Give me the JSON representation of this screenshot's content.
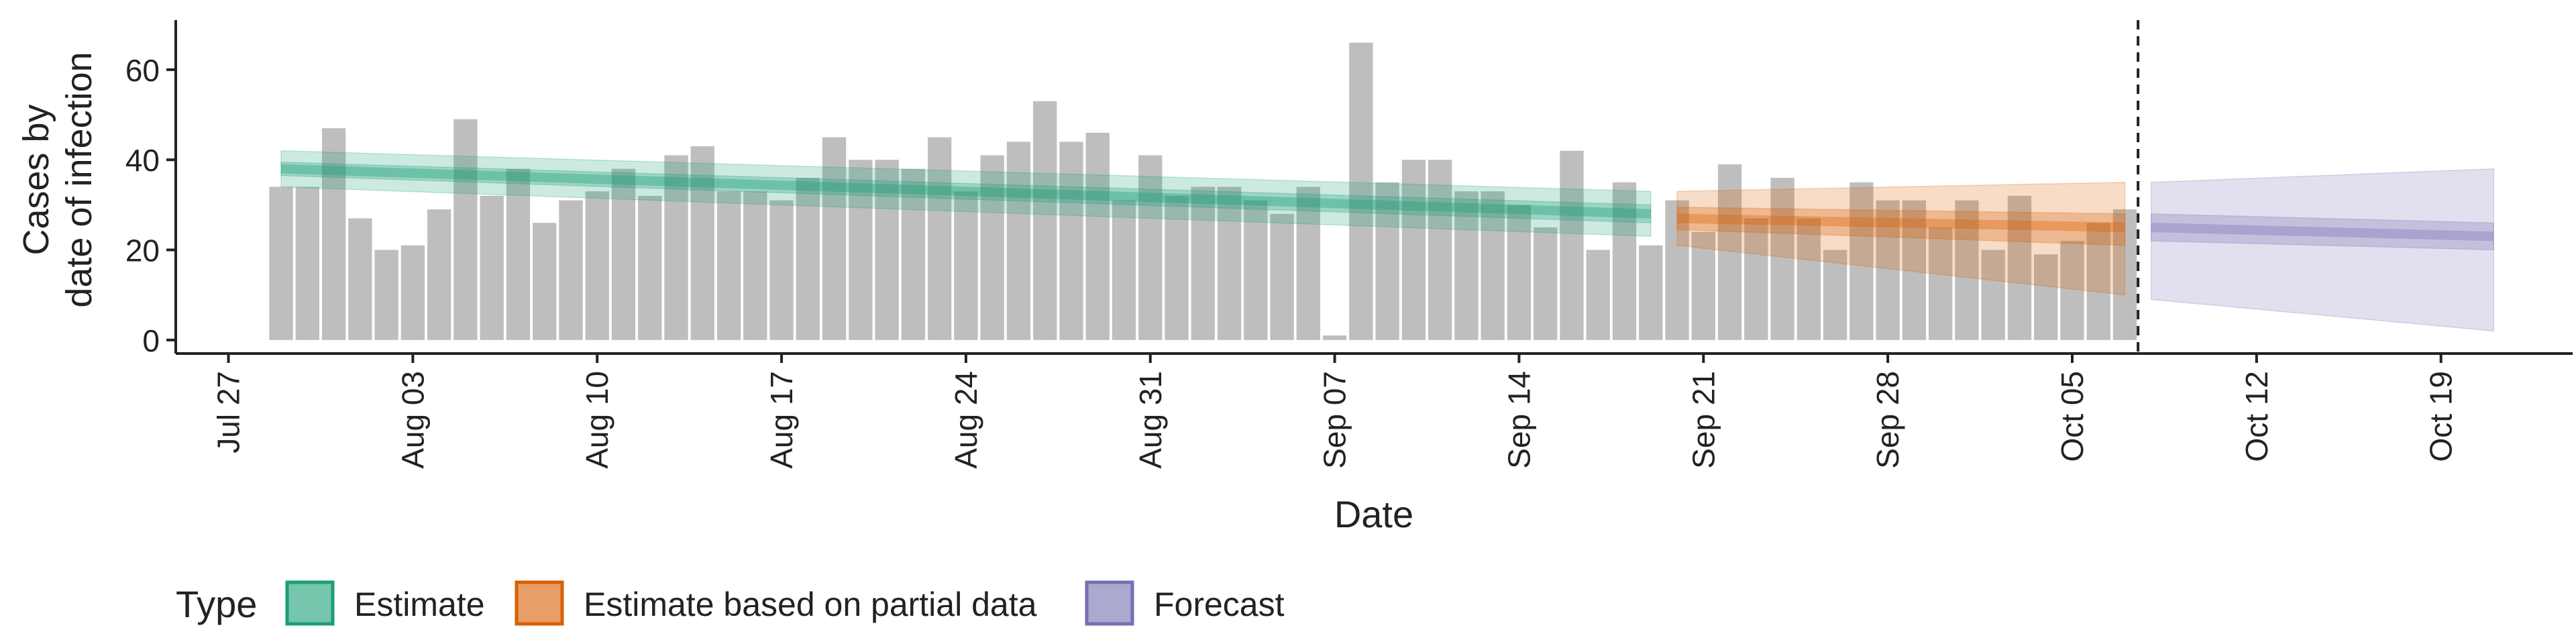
{
  "chart_data": {
    "type": "bar",
    "ylabel_lines": [
      "Cases by",
      "date of infection"
    ],
    "xlabel": "Date",
    "ylim": [
      -3,
      71
    ],
    "yticks": [
      0,
      20,
      40,
      60
    ],
    "x_start": "2020-07-25",
    "x_end": "2020-10-24",
    "xtick_dates": [
      "2020-07-27",
      "2020-08-03",
      "2020-08-10",
      "2020-08-17",
      "2020-08-24",
      "2020-08-31",
      "2020-09-07",
      "2020-09-14",
      "2020-09-21",
      "2020-09-28",
      "2020-10-05",
      "2020-10-12",
      "2020-10-19"
    ],
    "xtick_labels": [
      "Jul 27",
      "Aug 03",
      "Aug 10",
      "Aug 17",
      "Aug 24",
      "Aug 31",
      "Sep 07",
      "Sep 14",
      "Sep 21",
      "Sep 28",
      "Oct 05",
      "Oct 12",
      "Oct 19"
    ],
    "bar_start_date": "2020-07-29",
    "bar_values": [
      34,
      34,
      47,
      27,
      20,
      21,
      29,
      49,
      32,
      38,
      26,
      31,
      33,
      38,
      32,
      41,
      43,
      33,
      33,
      31,
      36,
      45,
      40,
      40,
      38,
      45,
      33,
      41,
      44,
      53,
      44,
      46,
      31,
      41,
      32,
      34,
      34,
      31,
      28,
      34,
      1,
      66,
      35,
      40,
      40,
      33,
      33,
      30,
      25,
      42,
      20,
      35,
      21,
      31,
      24,
      39,
      27,
      36,
      27,
      20,
      35,
      31,
      31,
      25,
      31,
      20,
      32,
      19,
      22,
      26,
      29
    ],
    "vline_date": "2020-10-07",
    "bar_color": "#bebebe",
    "series": [
      {
        "name": "Estimate",
        "color": "#1b9e77",
        "x": [
          "2020-07-29",
          "2020-09-19"
        ],
        "median": [
          38,
          28
        ],
        "ci50_lower": [
          36.5,
          26
        ],
        "ci50_upper": [
          39.5,
          30
        ],
        "ci90_lower": [
          34,
          23
        ],
        "ci90_upper": [
          42,
          33
        ]
      },
      {
        "name": "Estimate based on partial data",
        "color": "#d95f02",
        "x": [
          "2020-09-20",
          "2020-10-07"
        ],
        "median": [
          27,
          25
        ],
        "ci50_lower": [
          24.5,
          21
        ],
        "ci50_upper": [
          29.5,
          28
        ],
        "ci90_lower": [
          21,
          10
        ],
        "ci90_upper": [
          33,
          35
        ]
      },
      {
        "name": "Forecast",
        "color": "#7570b3",
        "x": [
          "2020-10-08",
          "2020-10-21"
        ],
        "median": [
          25,
          23
        ],
        "ci50_lower": [
          22,
          20
        ],
        "ci50_upper": [
          28,
          26
        ],
        "ci90_lower": [
          9,
          2
        ],
        "ci90_upper": [
          35,
          38
        ]
      }
    ]
  },
  "legend": {
    "title": "Type",
    "items": [
      "Estimate",
      "Estimate based on partial data",
      "Forecast"
    ]
  }
}
